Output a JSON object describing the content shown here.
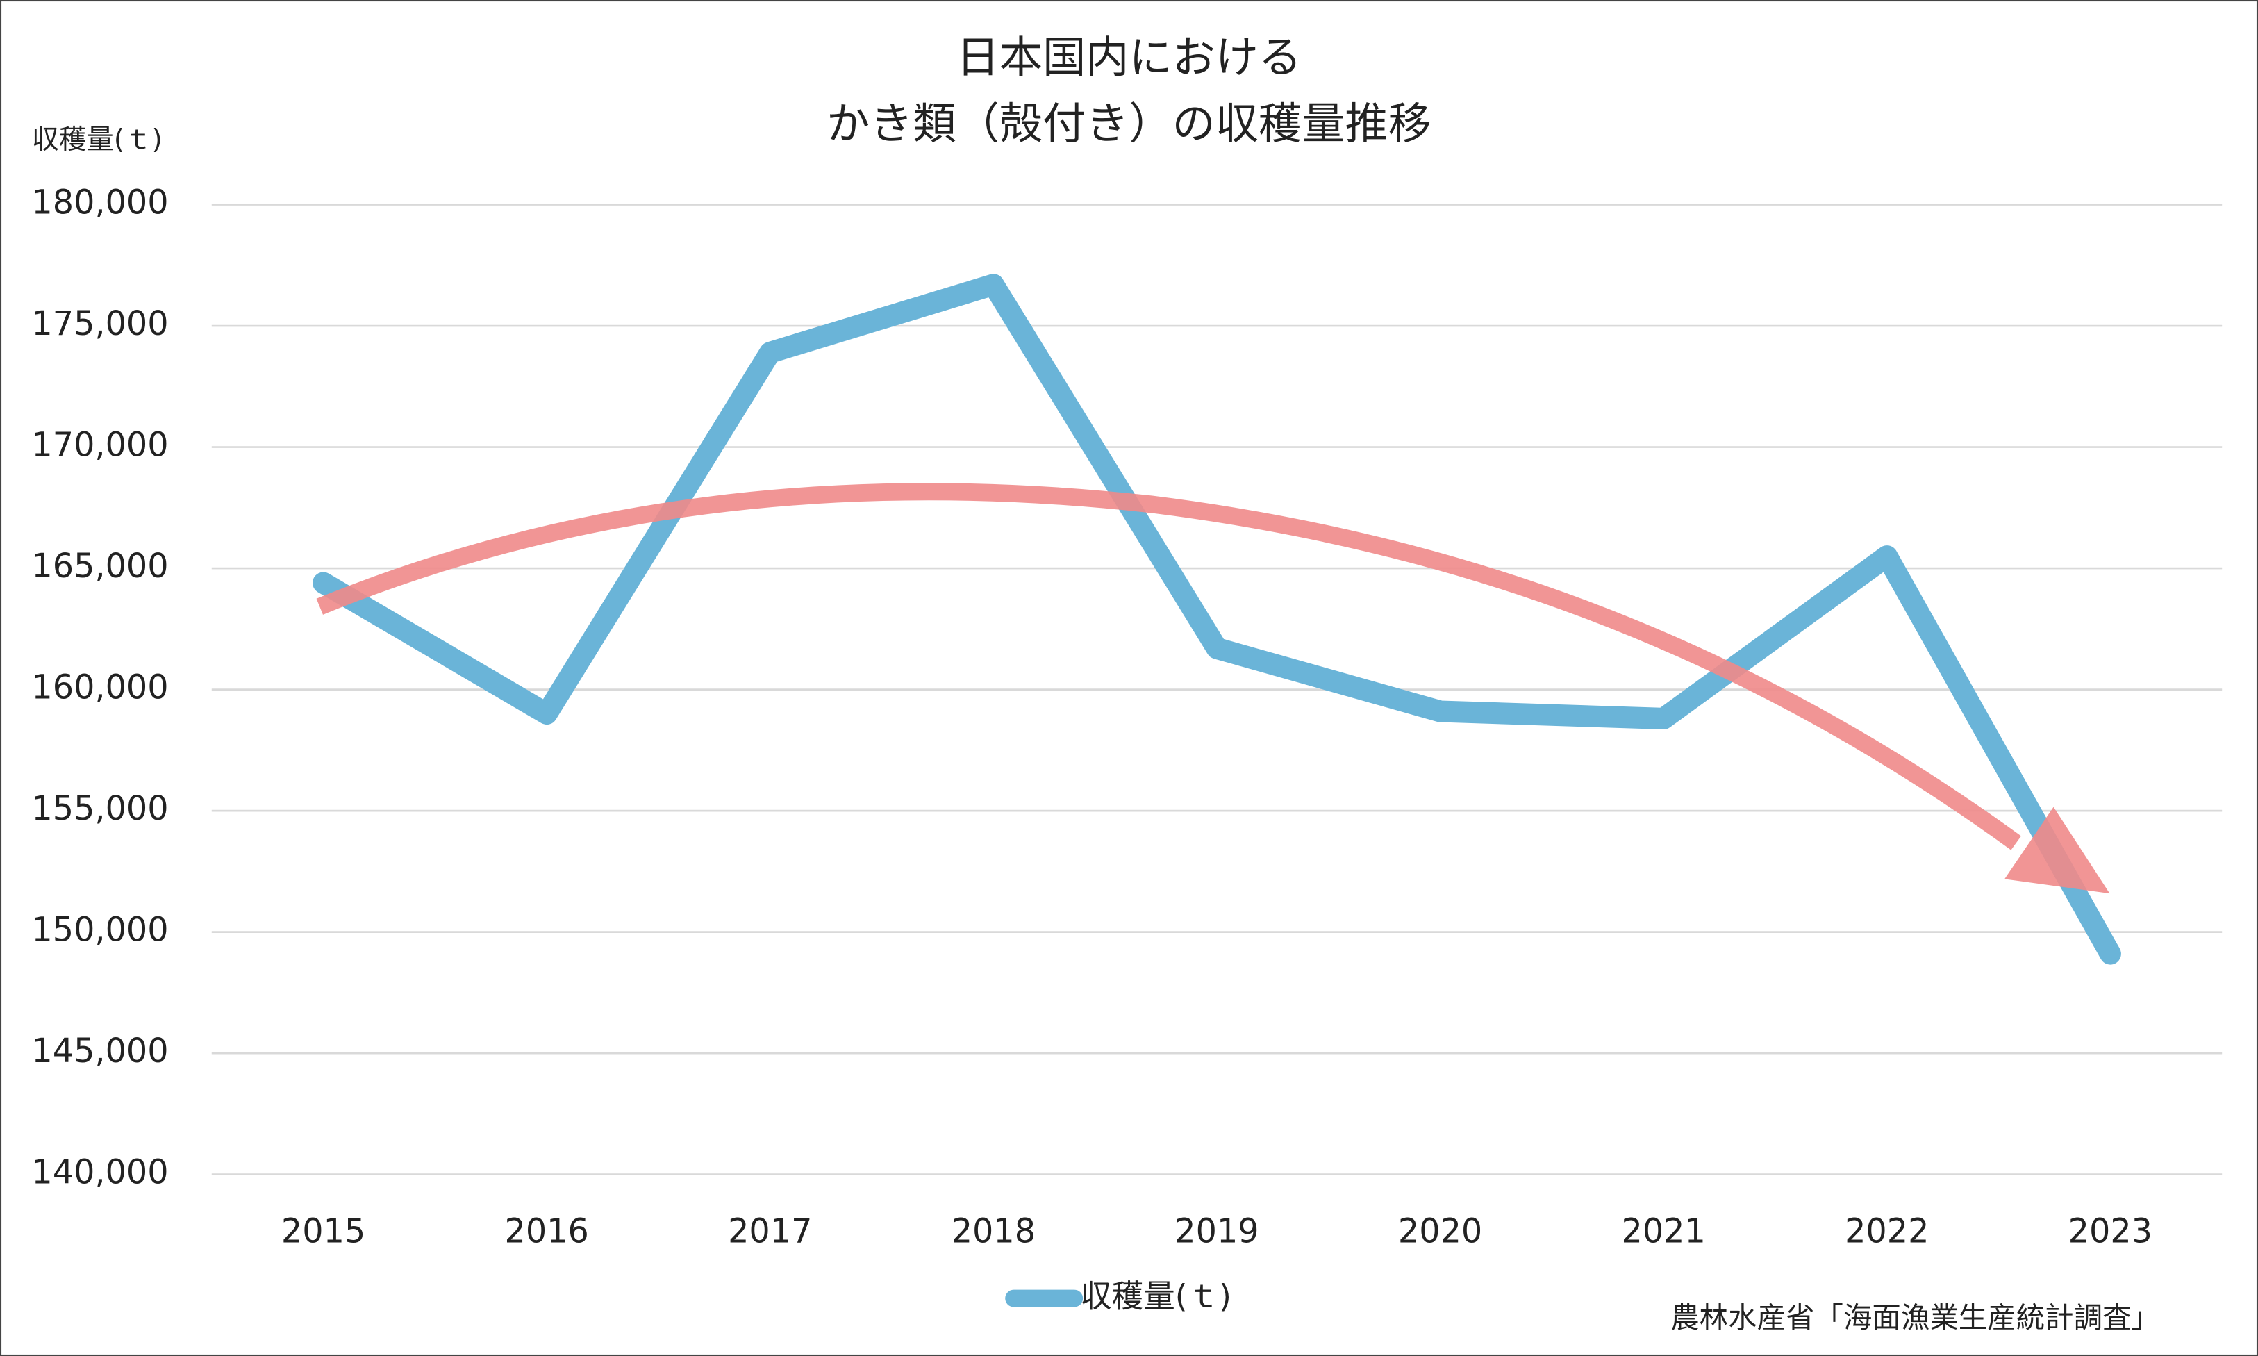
{
  "chart_data": {
    "type": "line",
    "title": [
      "日本国内における",
      "かき類（殻付き）の収穫量推移"
    ],
    "y_axis_label": "収穫量(ｔ)",
    "source": "農林水産省「海面漁業生産統計調査」",
    "categories": [
      "2015",
      "2016",
      "2017",
      "2018",
      "2019",
      "2020",
      "2021",
      "2022",
      "2023"
    ],
    "series": [
      {
        "name": "収穫量(ｔ)",
        "color": "#6ab4d8",
        "values": [
          164400,
          159000,
          173900,
          176700,
          161700,
          159100,
          158800,
          165500,
          149100
        ]
      }
    ],
    "ylim": [
      140000,
      180000
    ],
    "yticks": [
      {
        "value": 140000,
        "label": "140,000"
      },
      {
        "value": 145000,
        "label": "145,000"
      },
      {
        "value": 150000,
        "label": "150,000"
      },
      {
        "value": 155000,
        "label": "155,000"
      },
      {
        "value": 160000,
        "label": "160,000"
      },
      {
        "value": 165000,
        "label": "165,000"
      },
      {
        "value": 170000,
        "label": "170,000"
      },
      {
        "value": 175000,
        "label": "175,000"
      },
      {
        "value": 180000,
        "label": "180,000"
      }
    ],
    "grid": true
  }
}
